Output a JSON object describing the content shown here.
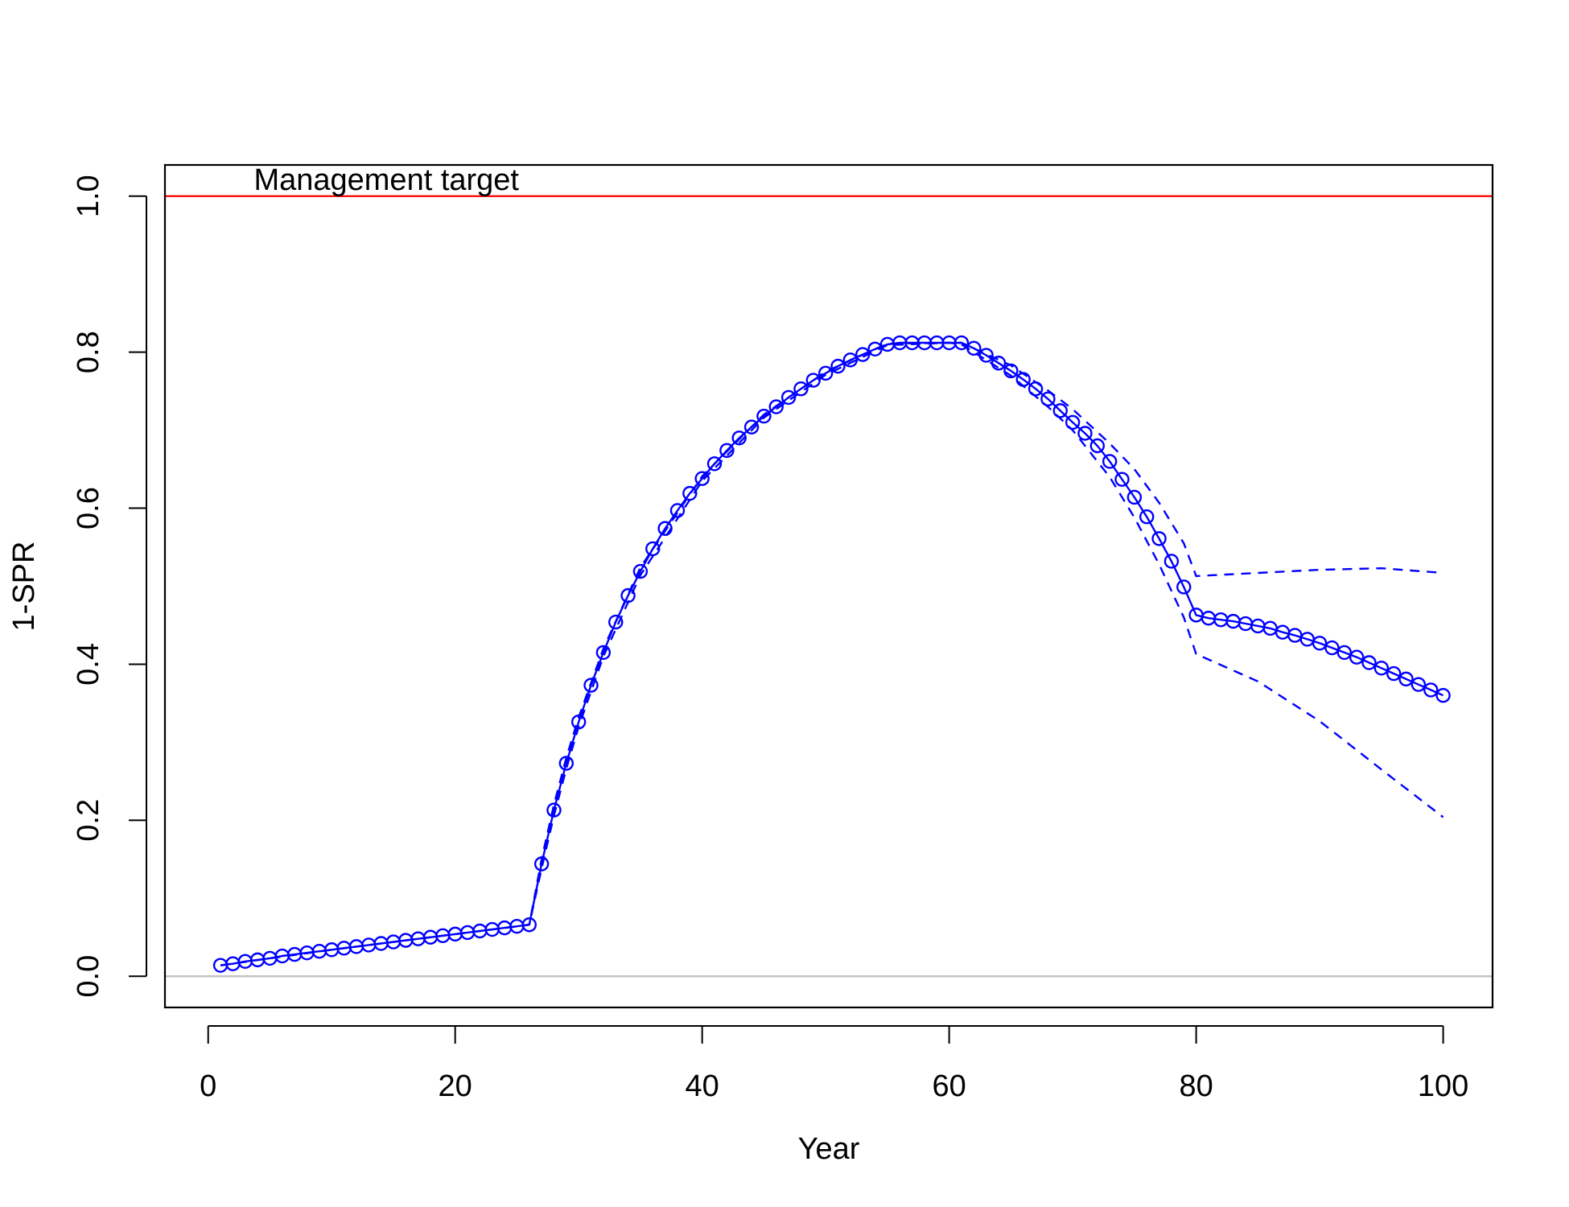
{
  "chart_data": {
    "type": "line",
    "title": "",
    "xlabel": "Year",
    "ylabel": "1-SPR",
    "xlim": [
      -3.5,
      104
    ],
    "ylim": [
      -0.04,
      1.04
    ],
    "x_ticks": [
      0,
      20,
      40,
      60,
      80,
      100
    ],
    "x_tick_labels": [
      "0",
      "20",
      "40",
      "60",
      "80",
      "100"
    ],
    "y_ticks": [
      0,
      0.2,
      0.4,
      0.6,
      0.8,
      1
    ],
    "y_tick_labels": [
      "0.0",
      "0.2",
      "0.4",
      "0.6",
      "0.8",
      "1.0"
    ],
    "grid": false,
    "legend": "none",
    "reference_lines": [
      {
        "y": 1.0,
        "color": "#ff0000"
      },
      {
        "y": 0.0,
        "color": "#bebebe"
      }
    ],
    "annotation": {
      "text": "Management target",
      "x": 5,
      "y": 1.0
    },
    "series_color": "#0000ff",
    "series": [
      {
        "style": "line-points",
        "x": [
          1,
          2,
          3,
          4,
          5,
          6,
          7,
          8,
          9,
          10,
          11,
          12,
          13,
          14,
          15,
          16,
          17,
          18,
          19,
          20,
          21,
          22,
          23,
          24,
          25,
          26,
          27,
          28,
          29,
          30,
          31,
          32,
          33,
          34,
          35,
          36,
          37,
          38,
          39,
          40,
          41,
          42,
          43,
          44,
          45,
          46,
          47,
          48,
          49,
          50,
          51,
          52,
          53,
          54,
          55,
          56,
          57,
          58,
          59,
          60,
          61,
          62,
          63,
          64,
          65,
          66,
          67,
          68,
          69,
          70,
          71,
          72,
          73,
          74,
          75,
          76,
          77,
          78,
          79,
          80,
          81,
          82,
          83,
          84,
          85,
          86,
          87,
          88,
          89,
          90,
          91,
          92,
          93,
          94,
          95,
          96,
          97,
          98,
          99,
          100
        ],
        "y": [
          0.014,
          0.016,
          0.019,
          0.021,
          0.023,
          0.026,
          0.028,
          0.03,
          0.032,
          0.034,
          0.036,
          0.038,
          0.04,
          0.042,
          0.044,
          0.046,
          0.048,
          0.05,
          0.052,
          0.054,
          0.056,
          0.058,
          0.06,
          0.062,
          0.064,
          0.066,
          0.144,
          0.213,
          0.273,
          0.326,
          0.373,
          0.415,
          0.454,
          0.488,
          0.519,
          0.548,
          0.574,
          0.597,
          0.619,
          0.638,
          0.657,
          0.674,
          0.69,
          0.704,
          0.718,
          0.73,
          0.742,
          0.753,
          0.764,
          0.773,
          0.782,
          0.79,
          0.797,
          0.804,
          0.81,
          0.812,
          0.812,
          0.812,
          0.812,
          0.812,
          0.812,
          0.805,
          0.796,
          0.786,
          0.776,
          0.765,
          0.753,
          0.74,
          0.725,
          0.71,
          0.696,
          0.68,
          0.66,
          0.637,
          0.614,
          0.589,
          0.561,
          0.532,
          0.499,
          0.463,
          0.459,
          0.457,
          0.455,
          0.452,
          0.449,
          0.446,
          0.441,
          0.437,
          0.432,
          0.427,
          0.421,
          0.415,
          0.409,
          0.402,
          0.395,
          0.388,
          0.381,
          0.374,
          0.367,
          0.36
        ]
      },
      {
        "style": "dashed",
        "x": [
          1,
          5,
          10,
          15,
          20,
          25,
          26,
          27,
          28,
          29,
          30,
          32,
          35,
          40,
          45,
          50,
          55,
          60,
          61,
          65,
          68,
          70,
          73,
          75,
          77,
          79,
          80,
          85,
          90,
          95,
          100
        ],
        "y": [
          0.014,
          0.023,
          0.034,
          0.044,
          0.054,
          0.064,
          0.066,
          0.15,
          0.22,
          0.28,
          0.332,
          0.42,
          0.524,
          0.641,
          0.72,
          0.775,
          0.811,
          0.812,
          0.812,
          0.783,
          0.751,
          0.727,
          0.683,
          0.65,
          0.607,
          0.555,
          0.513,
          0.517,
          0.521,
          0.523,
          0.517
        ]
      },
      {
        "style": "dashed",
        "x": [
          1,
          5,
          10,
          15,
          20,
          25,
          26,
          27,
          28,
          29,
          30,
          32,
          35,
          40,
          45,
          50,
          55,
          60,
          61,
          65,
          68,
          70,
          73,
          75,
          77,
          79,
          80,
          85,
          90,
          95,
          100
        ],
        "y": [
          0.014,
          0.023,
          0.034,
          0.044,
          0.054,
          0.064,
          0.066,
          0.138,
          0.206,
          0.266,
          0.32,
          0.41,
          0.514,
          0.635,
          0.716,
          0.771,
          0.809,
          0.812,
          0.81,
          0.77,
          0.73,
          0.7,
          0.64,
          0.588,
          0.528,
          0.46,
          0.413,
          0.378,
          0.327,
          0.265,
          0.204
        ]
      }
    ]
  }
}
